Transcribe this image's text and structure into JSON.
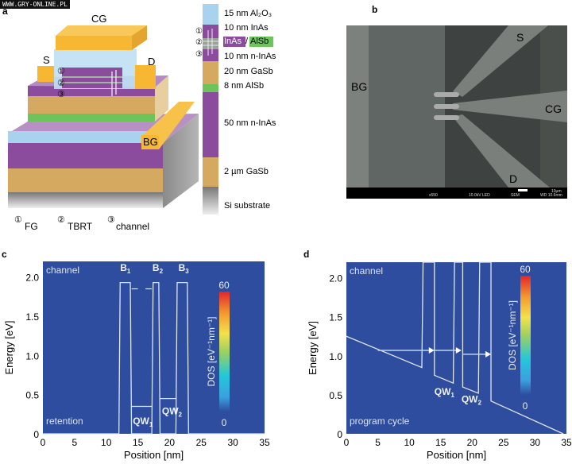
{
  "watermark": "WWW.GRY-ONLINE.PL",
  "panel_a": {
    "label": "a",
    "device_labels": {
      "cg": "CG",
      "s": "S",
      "d": "D",
      "bg": "BG"
    },
    "markers": [
      "①",
      "②",
      "③"
    ],
    "legend": [
      {
        "marker": "①",
        "text": "FG"
      },
      {
        "marker": "②",
        "text": "TBRT"
      },
      {
        "marker": "③",
        "text": "channel"
      }
    ],
    "stack_layers": [
      {
        "label": "15 nm Al₂O₃",
        "color": "#a9d2ee"
      },
      {
        "label": "10 nm InAs",
        "color": "#8c4c9e"
      },
      {
        "label_a": "InAs",
        "sep": "/",
        "label_b": "AlSb",
        "color": "#9aa39a"
      },
      {
        "label": "10 nm n-InAs",
        "color": "#8c4c9e"
      },
      {
        "label": "20 nm GaSb",
        "color": "#d5a95f"
      },
      {
        "label": "8 nm AlSb",
        "color": "#6cc45a"
      },
      {
        "label": "50 nm n-InAs",
        "color": "#8c4c9e"
      },
      {
        "label": "2 µm GaSb",
        "color": "#d5a95f"
      },
      {
        "label": "Si substrate",
        "color": "#8a8a8a"
      }
    ],
    "colors": {
      "gold": "#f7b733",
      "purple": "#8c4c9e",
      "tan": "#d5a95f",
      "green": "#6cc45a",
      "lightblue": "#a9d2ee",
      "gray": "#8a8a8a"
    }
  },
  "panel_b": {
    "label": "b",
    "labels": {
      "bg": "BG",
      "s": "S",
      "cg": "CG",
      "d": "D"
    },
    "info_bar": {
      "mag": "x550",
      "kv": "10.0kV LED",
      "mode": "SEM",
      "scale": "10µm",
      "wd": "WD 10.6mm"
    }
  },
  "chart_data": [
    {
      "panel": "c",
      "type": "line",
      "xlabel": "Position [nm]",
      "ylabel": "Energy [eV]",
      "xlim": [
        0,
        35
      ],
      "ylim": [
        0,
        2.2
      ],
      "xticks": [
        "0",
        "5",
        "10",
        "15",
        "20",
        "25",
        "30",
        "35"
      ],
      "yticks": [
        "0",
        "0.5",
        "1.0",
        "1.5",
        "2.0"
      ],
      "annotations": {
        "top_left": "channel",
        "bottom_left": "retention",
        "b1": "B",
        "b1_sub": "1",
        "b2": "B",
        "b2_sub": "2",
        "b3": "B",
        "b3_sub": "3",
        "qw1": "QW",
        "qw1_sub": "1",
        "qw2": "QW",
        "qw2_sub": "2"
      },
      "band_edge": {
        "x": [
          0,
          12,
          12.2,
          13.8,
          14,
          17.2,
          17.4,
          18.3,
          18.5,
          21,
          21.2,
          22.8,
          23,
          35
        ],
        "y": [
          0,
          0,
          1.93,
          1.93,
          0,
          0,
          1.93,
          1.93,
          0,
          0,
          1.93,
          1.93,
          0,
          0
        ]
      },
      "levels": [
        {
          "x": [
            14,
            17.2
          ],
          "y": 0.35
        },
        {
          "x": [
            18.5,
            21
          ],
          "y": 0.45
        },
        {
          "x": [
            14,
            15
          ],
          "y": 1.85
        },
        {
          "x": [
            16.2,
            17.2
          ],
          "y": 1.85
        }
      ],
      "colorbar": {
        "label": "DOS [eV⁻¹nm⁻¹]",
        "min": "0",
        "max": "60"
      },
      "background_color": "#2f4d9e",
      "line_color": "#dfe6f5"
    },
    {
      "panel": "d",
      "type": "line",
      "xlabel": "Position [nm]",
      "ylabel": "Energy [eV]",
      "xlim": [
        0,
        35
      ],
      "ylim": [
        0,
        2.2
      ],
      "xticks": [
        "0",
        "5",
        "10",
        "15",
        "20",
        "25",
        "30",
        "35"
      ],
      "yticks": [
        "0",
        "0.5",
        "1.0",
        "1.5",
        "2.0"
      ],
      "annotations": {
        "top_left": "channel",
        "bottom_left": "program cycle",
        "qw1": "QW",
        "qw1_sub": "1",
        "qw2": "QW",
        "qw2_sub": "2"
      },
      "band_edge": {
        "x": [
          0,
          12,
          12.2,
          14,
          14,
          17,
          17.2,
          18.5,
          18.5,
          21,
          21.2,
          23,
          23,
          34.5
        ],
        "y": [
          1.25,
          0.85,
          2.2,
          2.2,
          0.75,
          0.65,
          2.2,
          2.2,
          0.6,
          0.52,
          2.2,
          2.2,
          0.42,
          0
        ]
      },
      "tunneling_arrows": [
        {
          "x": [
            5,
            14
          ],
          "y": 1.07
        },
        {
          "x": [
            14,
            18.3
          ],
          "y": 1.07
        },
        {
          "x": [
            18.5,
            23
          ],
          "y": 1.02
        }
      ],
      "colorbar": {
        "label": "DOS [eV⁻¹nm⁻¹]",
        "min": "0",
        "max": "60"
      },
      "background_color": "#2f4d9e",
      "line_color": "#dfe6f5"
    }
  ]
}
